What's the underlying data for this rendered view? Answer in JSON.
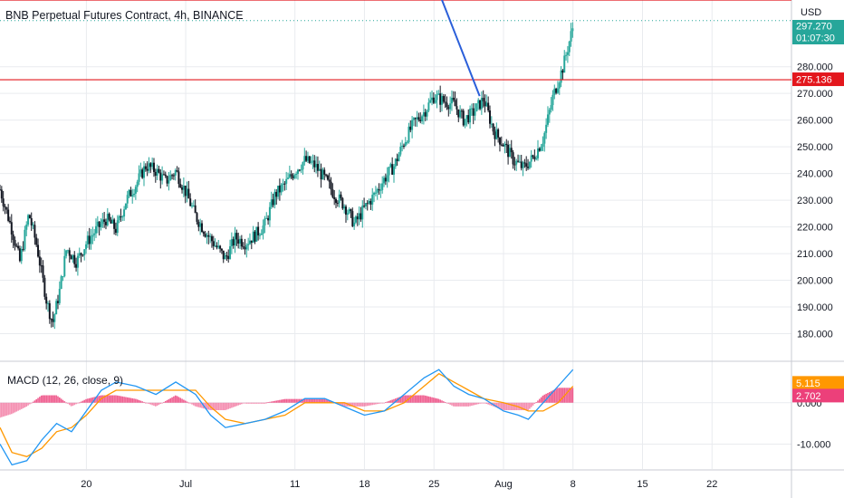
{
  "chart_data": {
    "type": "candlestick",
    "title": "BNB Perpetual Futures Contract, 4h, BINANCE",
    "currency": "USD",
    "colors": {
      "up": "#26a69a",
      "down": "#131722",
      "level": "#e3171d",
      "trend": "#2b5fd9",
      "macd": "#2196f3",
      "signal": "#ff9800",
      "hist_up": "#ec407a",
      "hist_down": "#ec407a"
    },
    "price_axis": {
      "ylim": [
        170,
        305
      ],
      "ticks": [
        "280.000",
        "270.000",
        "260.000",
        "250.000",
        "240.000",
        "230.000",
        "220.000",
        "210.000",
        "200.000",
        "190.000",
        "180.000"
      ],
      "tick_values": [
        280,
        270,
        260,
        250,
        240,
        230,
        220,
        210,
        200,
        190,
        180
      ]
    },
    "x_axis": {
      "ticks": [
        "20",
        "Jul",
        "11",
        "18",
        "25",
        "Aug",
        "8",
        "15",
        "22"
      ],
      "tick_days": [
        20,
        30,
        41,
        48,
        55,
        62,
        69,
        76,
        83
      ],
      "xlim": [
        11.3,
        91
      ]
    },
    "price_path": [
      [
        11.3,
        234
      ],
      [
        12.5,
        219
      ],
      [
        13.3,
        207
      ],
      [
        14.2,
        225
      ],
      [
        15,
        213
      ],
      [
        16,
        192
      ],
      [
        16.6,
        184
      ],
      [
        17.3,
        196
      ],
      [
        18,
        212
      ],
      [
        19,
        207
      ],
      [
        20,
        214
      ],
      [
        21,
        219
      ],
      [
        22,
        223
      ],
      [
        23,
        219
      ],
      [
        24,
        230
      ],
      [
        25,
        236
      ],
      [
        26,
        243
      ],
      [
        27,
        241
      ],
      [
        28,
        237
      ],
      [
        29,
        241
      ],
      [
        30,
        233
      ],
      [
        31,
        224
      ],
      [
        32,
        218
      ],
      [
        33,
        213
      ],
      [
        34,
        208
      ],
      [
        35,
        216
      ],
      [
        36,
        214
      ],
      [
        37,
        217
      ],
      [
        38,
        221
      ],
      [
        39,
        232
      ],
      [
        40,
        236
      ],
      [
        41,
        241
      ],
      [
        42,
        245
      ],
      [
        43,
        243
      ],
      [
        44,
        238
      ],
      [
        45,
        232
      ],
      [
        46,
        228
      ],
      [
        47,
        221
      ],
      [
        48,
        227
      ],
      [
        49,
        232
      ],
      [
        50,
        238
      ],
      [
        51,
        243
      ],
      [
        52,
        252
      ],
      [
        53,
        259
      ],
      [
        54,
        263
      ],
      [
        55,
        269
      ],
      [
        56,
        267
      ],
      [
        57,
        266
      ],
      [
        58,
        260
      ],
      [
        59,
        263
      ],
      [
        60,
        268
      ],
      [
        61,
        256
      ],
      [
        62,
        251
      ],
      [
        63,
        245
      ],
      [
        64,
        242
      ],
      [
        65,
        246
      ],
      [
        66,
        253
      ],
      [
        67,
        269
      ],
      [
        68,
        280
      ],
      [
        69,
        295
      ]
    ],
    "levels": [
      {
        "value": 305
      },
      {
        "value": 275.136,
        "label": "275.136"
      }
    ],
    "trend_line": [
      [
        55.7,
        306
      ],
      [
        59.6,
        269
      ]
    ],
    "price_badges": [
      {
        "text": "297.270",
        "color": "#26a69a"
      },
      {
        "text": "01:07:30",
        "color": "#26a69a"
      }
    ],
    "macd": {
      "label": "MACD (12, 26, close, 9)",
      "ylim": [
        -16,
        10
      ],
      "ticks": [
        "0.000",
        "-10.000"
      ],
      "tick_values": [
        0,
        -10
      ],
      "macd_value": "5.115",
      "signal_value": "2.702",
      "macd_path": [
        [
          11.3,
          -10
        ],
        [
          12.5,
          -15
        ],
        [
          14,
          -14
        ],
        [
          15.5,
          -9
        ],
        [
          17,
          -5
        ],
        [
          18.5,
          -7
        ],
        [
          20,
          -2
        ],
        [
          21.5,
          3
        ],
        [
          23,
          5
        ],
        [
          25,
          4
        ],
        [
          27,
          2
        ],
        [
          29,
          5
        ],
        [
          31,
          2
        ],
        [
          32.5,
          -3
        ],
        [
          34,
          -6
        ],
        [
          36,
          -5
        ],
        [
          38,
          -4
        ],
        [
          40,
          -2
        ],
        [
          42,
          1
        ],
        [
          44,
          1
        ],
        [
          46,
          -1
        ],
        [
          48,
          -3
        ],
        [
          50,
          -2
        ],
        [
          52,
          2
        ],
        [
          54,
          6
        ],
        [
          55.5,
          8
        ],
        [
          57,
          4
        ],
        [
          58.5,
          2
        ],
        [
          60,
          1
        ],
        [
          62,
          -2
        ],
        [
          63.5,
          -3
        ],
        [
          64.5,
          -4
        ],
        [
          66,
          0
        ],
        [
          67.5,
          4
        ],
        [
          69,
          8
        ]
      ],
      "signal_path": [
        [
          11.3,
          -6
        ],
        [
          12.5,
          -12
        ],
        [
          14,
          -13
        ],
        [
          15.5,
          -11
        ],
        [
          17,
          -7
        ],
        [
          18.5,
          -6
        ],
        [
          20,
          -3
        ],
        [
          21.5,
          1
        ],
        [
          23,
          3
        ],
        [
          25,
          3
        ],
        [
          27,
          3
        ],
        [
          29,
          3
        ],
        [
          31,
          3
        ],
        [
          32.5,
          -1
        ],
        [
          34,
          -4
        ],
        [
          36,
          -5
        ],
        [
          38,
          -4
        ],
        [
          40,
          -3
        ],
        [
          42,
          0
        ],
        [
          44,
          0
        ],
        [
          46,
          0
        ],
        [
          48,
          -2
        ],
        [
          50,
          -2
        ],
        [
          52,
          0
        ],
        [
          54,
          4
        ],
        [
          55.5,
          7
        ],
        [
          57,
          5
        ],
        [
          58.5,
          3
        ],
        [
          60,
          1
        ],
        [
          62,
          0
        ],
        [
          63.5,
          -1
        ],
        [
          64.5,
          -2
        ],
        [
          66,
          -2
        ],
        [
          67.5,
          0
        ],
        [
          69,
          4
        ]
      ]
    }
  }
}
